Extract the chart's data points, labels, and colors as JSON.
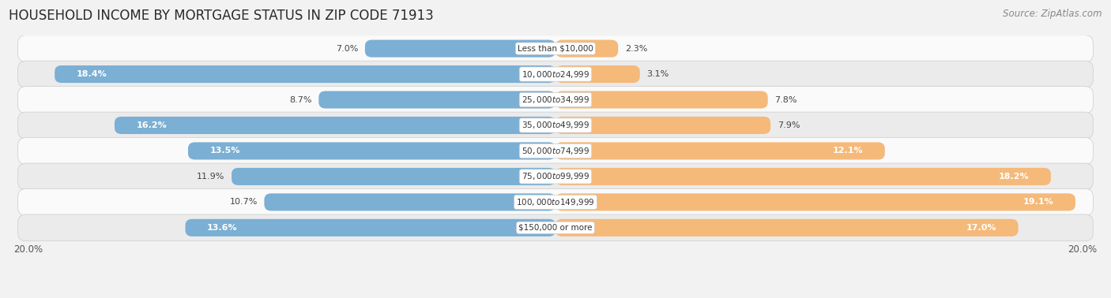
{
  "title": "HOUSEHOLD INCOME BY MORTGAGE STATUS IN ZIP CODE 71913",
  "source": "Source: ZipAtlas.com",
  "categories": [
    "Less than $10,000",
    "$10,000 to $24,999",
    "$25,000 to $34,999",
    "$35,000 to $49,999",
    "$50,000 to $74,999",
    "$75,000 to $99,999",
    "$100,000 to $149,999",
    "$150,000 or more"
  ],
  "without_mortgage": [
    7.0,
    18.4,
    8.7,
    16.2,
    13.5,
    11.9,
    10.7,
    13.6
  ],
  "with_mortgage": [
    2.3,
    3.1,
    7.8,
    7.9,
    12.1,
    18.2,
    19.1,
    17.0
  ],
  "color_without": "#7bafd4",
  "color_with": "#f5b97a",
  "bg_color": "#f2f2f2",
  "row_colors": [
    "#fafafa",
    "#ebebeb"
  ],
  "xlim": 20.0,
  "axis_label_left": "20.0%",
  "axis_label_right": "20.0%",
  "title_fontsize": 12,
  "source_fontsize": 8.5,
  "bar_label_fontsize": 8,
  "category_fontsize": 7.5,
  "inside_label_threshold_without": 12.0,
  "inside_label_threshold_with": 11.0
}
